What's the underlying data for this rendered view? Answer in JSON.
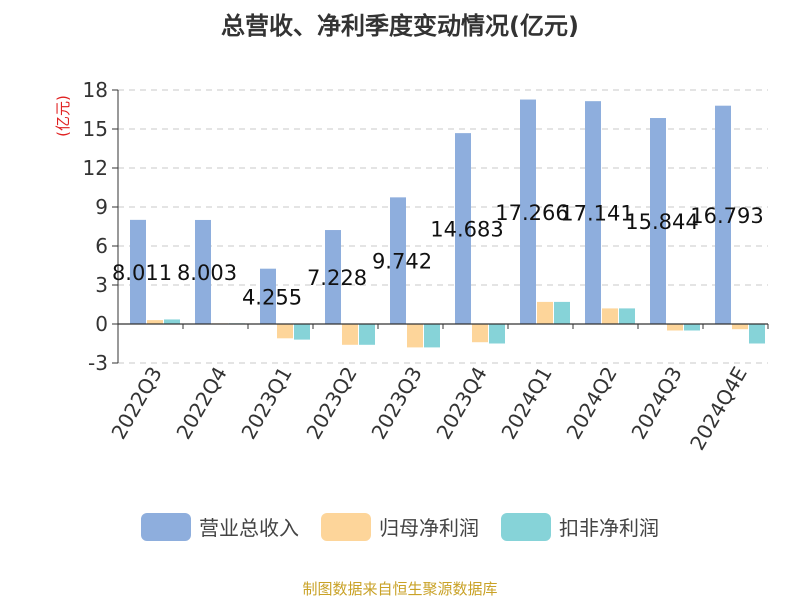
{
  "chart_data": {
    "type": "bar",
    "title": "总营收、净利季度变动情况(亿元)",
    "ylabel": "(亿元)",
    "xlabel": "",
    "categories": [
      "2022Q3",
      "2022Q4",
      "2023Q1",
      "2023Q2",
      "2023Q3",
      "2023Q4",
      "2024Q1",
      "2024Q2",
      "2024Q3",
      "2024Q4E"
    ],
    "ylim": [
      -3,
      18
    ],
    "yticks": [
      -3,
      0,
      3,
      6,
      9,
      12,
      15,
      18
    ],
    "grid": true,
    "legend_position": "bottom",
    "series": [
      {
        "name": "营业总收入",
        "color": "#8eaedd",
        "values": [
          8.011,
          8.003,
          4.255,
          7.228,
          9.742,
          14.683,
          17.266,
          17.141,
          15.844,
          16.793
        ],
        "labels": [
          "8.011",
          "8.003",
          "4.255",
          "7.228",
          "9.742",
          "14.683",
          "17.266",
          "17.141",
          "15.844",
          "16.793"
        ]
      },
      {
        "name": "归母净利润",
        "color": "#fdd59a",
        "values": [
          0.3,
          0.05,
          -1.1,
          -1.6,
          -1.8,
          -1.4,
          1.7,
          1.2,
          -0.5,
          -0.4
        ]
      },
      {
        "name": "扣非净利润",
        "color": "#86d3d8",
        "values": [
          0.35,
          0.05,
          -1.2,
          -1.6,
          -1.8,
          -1.5,
          1.7,
          1.2,
          -0.5,
          -1.5
        ]
      }
    ]
  },
  "source": "制图数据来自恒生聚源数据库"
}
